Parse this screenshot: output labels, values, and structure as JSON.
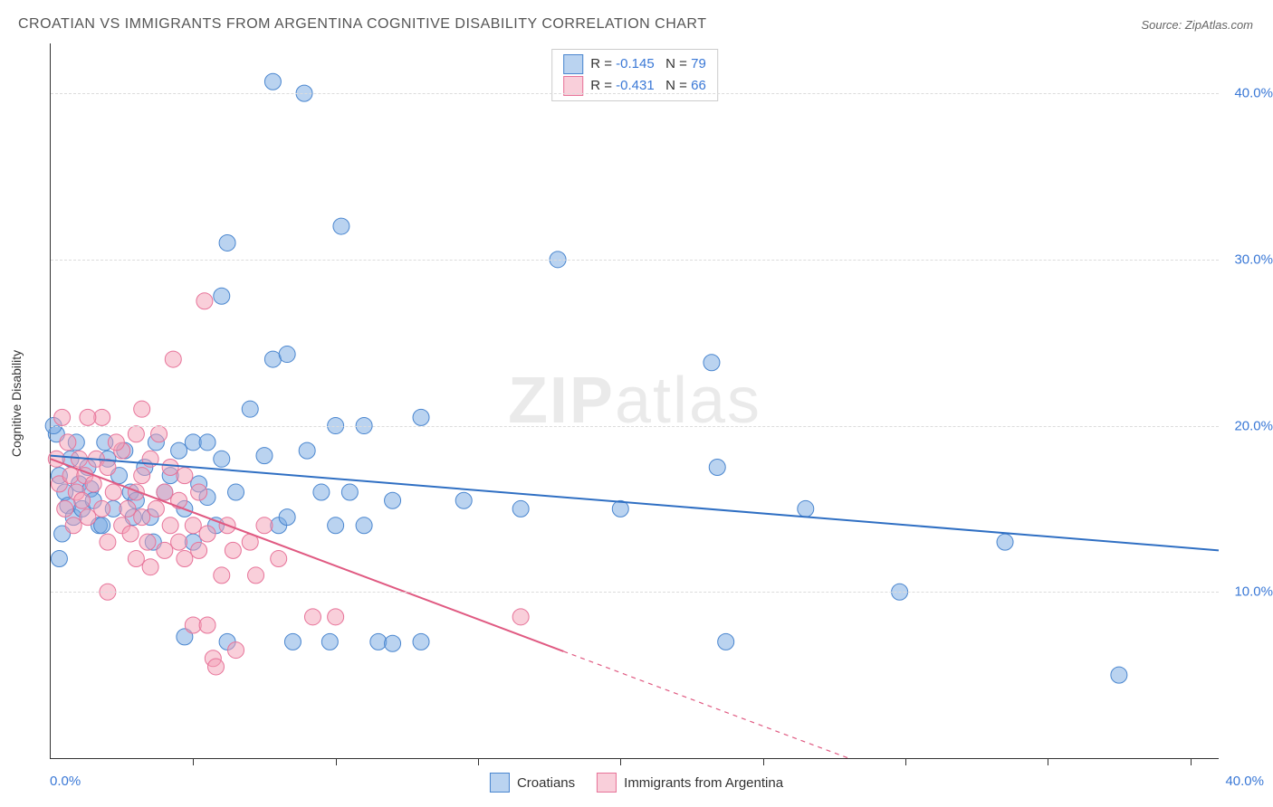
{
  "title": "CROATIAN VS IMMIGRANTS FROM ARGENTINA COGNITIVE DISABILITY CORRELATION CHART",
  "source_label": "Source: ZipAtlas.com",
  "watermark": "ZIPatlas",
  "ylabel": "Cognitive Disability",
  "chart": {
    "type": "scatter",
    "xlim": [
      0,
      41
    ],
    "ylim": [
      0,
      43
    ],
    "xlim_labels": [
      "0.0%",
      "40.0%"
    ],
    "ytick_positions": [
      10,
      20,
      30,
      40
    ],
    "ytick_labels": [
      "10.0%",
      "20.0%",
      "30.0%",
      "40.0%"
    ],
    "xtick_positions": [
      5,
      10,
      15,
      20,
      25,
      30,
      35,
      40
    ],
    "background_color": "#ffffff",
    "grid_color": "#dcdcdc",
    "point_radius": 9,
    "point_opacity": 0.55,
    "line_width": 2
  },
  "series": [
    {
      "key": "croatians",
      "label": "Croatians",
      "color_fill": "rgba(118,168,225,0.5)",
      "color_stroke": "#4a86cf",
      "line_color": "#2f6fc3",
      "R": "-0.145",
      "N": "79",
      "trend": {
        "x1": 0,
        "y1": 18.2,
        "x2": 41,
        "y2": 12.5,
        "dash_after_x": null
      },
      "points": [
        [
          0.2,
          19.5
        ],
        [
          0.3,
          17.0
        ],
        [
          0.5,
          16.0
        ],
        [
          0.6,
          15.2
        ],
        [
          0.7,
          18.0
        ],
        [
          0.8,
          14.5
        ],
        [
          0.9,
          19.0
        ],
        [
          1.0,
          16.5
        ],
        [
          1.1,
          15.0
        ],
        [
          1.3,
          17.5
        ],
        [
          1.4,
          16.2
        ],
        [
          1.5,
          15.5
        ],
        [
          1.7,
          14.0
        ],
        [
          1.9,
          19.0
        ],
        [
          2.0,
          18.0
        ],
        [
          2.2,
          15.0
        ],
        [
          2.4,
          17.0
        ],
        [
          2.6,
          18.5
        ],
        [
          2.8,
          16.0
        ],
        [
          3.0,
          15.5
        ],
        [
          3.3,
          17.5
        ],
        [
          3.5,
          14.5
        ],
        [
          3.7,
          19.0
        ],
        [
          4.0,
          16.0
        ],
        [
          4.2,
          17.0
        ],
        [
          4.5,
          18.5
        ],
        [
          4.7,
          15.0
        ],
        [
          4.7,
          7.3
        ],
        [
          5.0,
          19.0
        ],
        [
          5.2,
          16.5
        ],
        [
          5.5,
          19.0
        ],
        [
          5.5,
          15.7
        ],
        [
          5.8,
          14.0
        ],
        [
          6.0,
          18.0
        ],
        [
          6.0,
          27.8
        ],
        [
          6.2,
          7.0
        ],
        [
          6.2,
          31.0
        ],
        [
          6.5,
          16.0
        ],
        [
          7.0,
          21.0
        ],
        [
          7.5,
          18.2
        ],
        [
          7.8,
          24.0
        ],
        [
          7.8,
          40.7
        ],
        [
          8.0,
          14.0
        ],
        [
          8.3,
          14.5
        ],
        [
          8.3,
          24.3
        ],
        [
          8.5,
          7.0
        ],
        [
          8.9,
          40.0
        ],
        [
          9.0,
          18.5
        ],
        [
          9.5,
          16.0
        ],
        [
          9.8,
          7.0
        ],
        [
          10.0,
          14.0
        ],
        [
          10.0,
          20.0
        ],
        [
          10.2,
          32.0
        ],
        [
          10.5,
          16.0
        ],
        [
          11.0,
          14.0
        ],
        [
          11.0,
          20.0
        ],
        [
          11.5,
          7.0
        ],
        [
          12.0,
          15.5
        ],
        [
          12.0,
          6.9
        ],
        [
          13.0,
          7.0
        ],
        [
          13.0,
          20.5
        ],
        [
          14.5,
          15.5
        ],
        [
          16.5,
          15.0
        ],
        [
          17.8,
          30.0
        ],
        [
          20.0,
          15.0
        ],
        [
          23.2,
          23.8
        ],
        [
          23.4,
          17.5
        ],
        [
          23.7,
          7.0
        ],
        [
          26.5,
          15.0
        ],
        [
          29.8,
          10.0
        ],
        [
          33.5,
          13.0
        ],
        [
          37.5,
          5.0
        ],
        [
          0.1,
          20.0
        ],
        [
          0.3,
          12.0
        ],
        [
          0.4,
          13.5
        ],
        [
          1.8,
          14.0
        ],
        [
          2.9,
          14.5
        ],
        [
          3.6,
          13.0
        ],
        [
          5.0,
          13.0
        ]
      ]
    },
    {
      "key": "argentina",
      "label": "Immigrants from Argentina",
      "color_fill": "rgba(244,160,182,0.5)",
      "color_stroke": "#e77399",
      "line_color": "#e05a82",
      "R": "-0.431",
      "N": "66",
      "trend": {
        "x1": 0,
        "y1": 18.0,
        "x2": 28,
        "y2": 0,
        "dash_after_x": 18
      },
      "points": [
        [
          0.2,
          18.0
        ],
        [
          0.3,
          16.5
        ],
        [
          0.4,
          20.5
        ],
        [
          0.5,
          15.0
        ],
        [
          0.6,
          19.0
        ],
        [
          0.7,
          17.0
        ],
        [
          0.8,
          14.0
        ],
        [
          0.9,
          16.0
        ],
        [
          1.0,
          18.0
        ],
        [
          1.1,
          15.5
        ],
        [
          1.2,
          17.0
        ],
        [
          1.3,
          14.5
        ],
        [
          1.5,
          16.5
        ],
        [
          1.6,
          18.0
        ],
        [
          1.8,
          15.0
        ],
        [
          1.8,
          20.5
        ],
        [
          2.0,
          17.5
        ],
        [
          2.0,
          13.0
        ],
        [
          2.2,
          16.0
        ],
        [
          2.5,
          14.0
        ],
        [
          2.5,
          18.5
        ],
        [
          2.7,
          15.0
        ],
        [
          2.8,
          13.5
        ],
        [
          3.0,
          16.0
        ],
        [
          3.0,
          12.0
        ],
        [
          3.2,
          14.5
        ],
        [
          3.2,
          17.0
        ],
        [
          3.4,
          13.0
        ],
        [
          3.5,
          18.0
        ],
        [
          3.5,
          11.5
        ],
        [
          3.7,
          15.0
        ],
        [
          3.8,
          19.5
        ],
        [
          4.0,
          12.5
        ],
        [
          4.0,
          16.0
        ],
        [
          4.2,
          14.0
        ],
        [
          4.2,
          17.5
        ],
        [
          4.3,
          24.0
        ],
        [
          4.5,
          13.0
        ],
        [
          4.5,
          15.5
        ],
        [
          4.7,
          12.0
        ],
        [
          4.7,
          17.0
        ],
        [
          5.0,
          14.0
        ],
        [
          5.0,
          8.0
        ],
        [
          5.2,
          12.5
        ],
        [
          5.2,
          16.0
        ],
        [
          5.4,
          27.5
        ],
        [
          5.5,
          13.5
        ],
        [
          5.5,
          8.0
        ],
        [
          5.7,
          6.0
        ],
        [
          5.8,
          5.5
        ],
        [
          6.0,
          11.0
        ],
        [
          6.2,
          14.0
        ],
        [
          6.4,
          12.5
        ],
        [
          6.5,
          6.5
        ],
        [
          7.0,
          13.0
        ],
        [
          7.2,
          11.0
        ],
        [
          7.5,
          14.0
        ],
        [
          8.0,
          12.0
        ],
        [
          9.2,
          8.5
        ],
        [
          10.0,
          8.5
        ],
        [
          1.3,
          20.5
        ],
        [
          2.0,
          10.0
        ],
        [
          2.3,
          19.0
        ],
        [
          3.0,
          19.5
        ],
        [
          3.2,
          21.0
        ],
        [
          16.5,
          8.5
        ]
      ]
    }
  ],
  "legend_top": {
    "rows": [
      {
        "series_key": "croatians"
      },
      {
        "series_key": "argentina"
      }
    ]
  },
  "legend_bottom": {
    "items": [
      {
        "series_key": "croatians"
      },
      {
        "series_key": "argentina"
      }
    ]
  }
}
